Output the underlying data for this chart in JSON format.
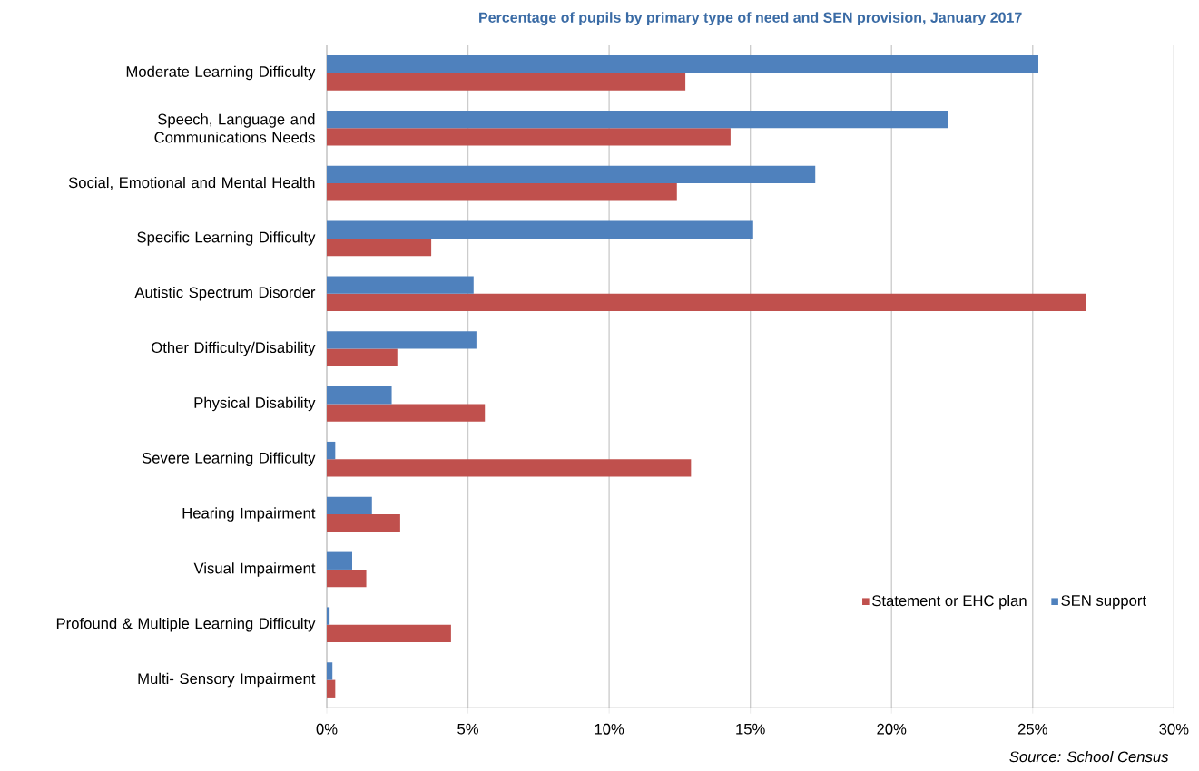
{
  "chart_data": {
    "type": "bar",
    "orientation": "horizontal",
    "title": "Percentage of pupils by primary type of need and SEN provision, January 2017",
    "categories": [
      "Moderate Learning Difficulty",
      "Speech, Language and Communications Needs",
      "Social, Emotional and Mental Health",
      "Specific Learning Difficulty",
      "Autistic Spectrum Disorder",
      "Other Difficulty/Disability",
      "Physical Disability",
      "Severe Learning Difficulty",
      "Hearing Impairment",
      "Visual Impairment",
      "Profound & Multiple Learning Difficulty",
      "Multi- Sensory Impairment"
    ],
    "series": [
      {
        "name": "Statement or EHC plan",
        "color": "#c0504d",
        "values": [
          12.7,
          14.3,
          12.4,
          3.7,
          26.9,
          2.5,
          5.6,
          12.9,
          2.6,
          1.4,
          4.4,
          0.3
        ]
      },
      {
        "name": "SEN support",
        "color": "#4f81bd",
        "values": [
          25.2,
          22.0,
          17.3,
          15.1,
          5.2,
          5.3,
          2.3,
          0.3,
          1.6,
          0.9,
          0.1,
          0.2
        ]
      }
    ],
    "xlim": [
      0,
      30
    ],
    "xticks": [
      {
        "value": 0,
        "label": "0%"
      },
      {
        "value": 5,
        "label": "5%"
      },
      {
        "value": 10,
        "label": "10%"
      },
      {
        "value": 15,
        "label": "15%"
      },
      {
        "value": 20,
        "label": "20%"
      },
      {
        "value": 25,
        "label": "25%"
      },
      {
        "value": 30,
        "label": "30%"
      }
    ],
    "grid": "x",
    "legend": "bottom right",
    "annotations": [
      "Source: School Census"
    ]
  }
}
